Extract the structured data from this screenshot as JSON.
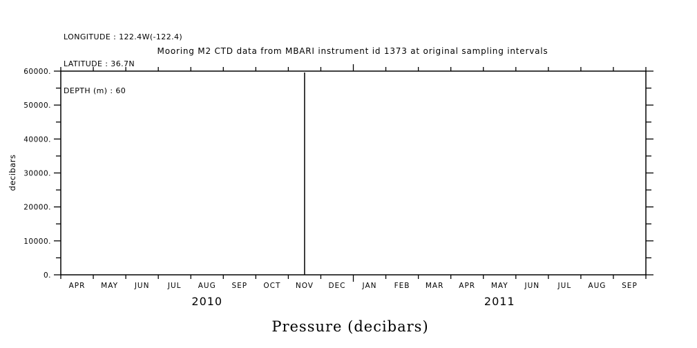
{
  "colors": {
    "background": "#ffffff",
    "foreground": "#000000"
  },
  "header": {
    "lines": [
      "LONGITUDE : 122.4W(-122.4)",
      "LATITUDE : 36.7N",
      "DEPTH (m) : 60"
    ]
  },
  "title": "Mooring M2 CTD data from MBARI instrument id 1373 at original sampling intervals",
  "y_axis_title": "decibars",
  "x_axis_title": "Pressure (decibars)",
  "chart_data": {
    "type": "line",
    "title": "Mooring M2 CTD data from MBARI instrument id 1373 at original sampling intervals",
    "xlabel": "Pressure (decibars)",
    "ylabel": "decibars",
    "ylim": [
      0,
      60000
    ],
    "grid": false,
    "frame": true,
    "x_categories_months": [
      "APR",
      "MAY",
      "JUN",
      "JUL",
      "AUG",
      "SEP",
      "OCT",
      "NOV",
      "DEC",
      "JAN",
      "FEB",
      "MAR",
      "APR",
      "MAY",
      "JUN",
      "JUL",
      "AUG",
      "SEP"
    ],
    "x_years": [
      {
        "label": "2010",
        "start_month_index": 0,
        "end_month_index": 9
      },
      {
        "label": "2011",
        "start_month_index": 9,
        "end_month_index": 18
      }
    ],
    "year_boundary_month_index": 9,
    "y_major_tick_values": [
      0,
      10000,
      20000,
      30000,
      40000,
      50000,
      60000
    ],
    "y_major_tick_labels": [
      "0.",
      "10000.",
      "20000.",
      "30000.",
      "40000.",
      "50000.",
      "60000."
    ],
    "y_minor_tick_step": 5000,
    "series": [
      {
        "name": "Pressure",
        "baseline_value": 0,
        "spike": {
          "month_index_from_start": 7.5,
          "month_label": "NOV 2010 (mid-month)",
          "base_value": 0,
          "peak_value": 59600
        }
      }
    ]
  }
}
